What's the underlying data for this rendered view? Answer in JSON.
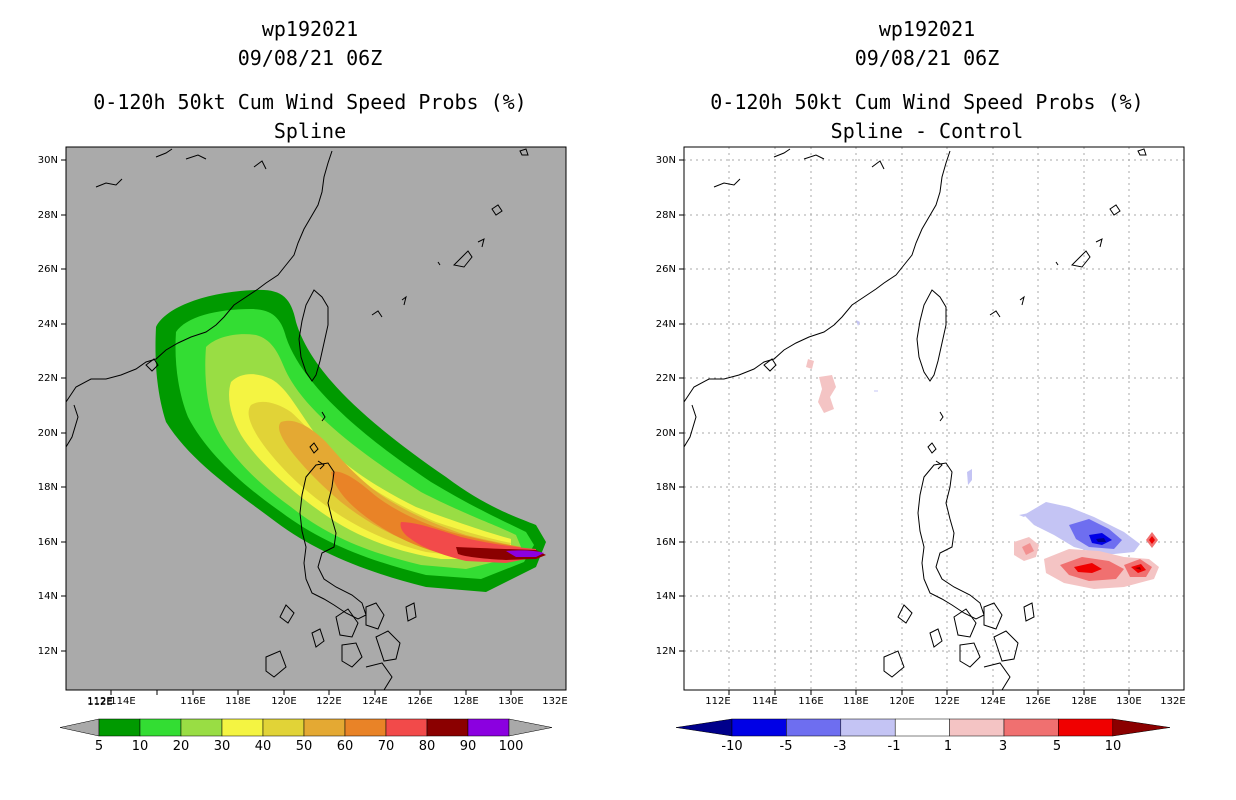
{
  "left_panel": {
    "title_lines": [
      "wp192021",
      "09/08/21 06Z",
      "0-120h 50kt Cum Wind Speed Probs (%)",
      "Spline"
    ],
    "colorbar": {
      "labels": [
        "5",
        "10",
        "20",
        "30",
        "40",
        "50",
        "60",
        "70",
        "80",
        "90",
        "100"
      ],
      "colors": [
        "#009a00",
        "#33dd33",
        "#99dd44",
        "#f4f442",
        "#e1d337",
        "#e4a933",
        "#e98327",
        "#f24a4a",
        "#8b0000",
        "#8b00e0"
      ],
      "end_color": "#a9a9a9"
    }
  },
  "right_panel": {
    "title_lines": [
      "wp192021",
      "09/08/21 06Z",
      "0-120h 50kt Cum Wind Speed Probs (%)",
      "Spline - Control"
    ],
    "colorbar": {
      "labels": [
        "-10",
        "-5",
        "-3",
        "-1",
        "1",
        "3",
        "5",
        "10"
      ],
      "colors": [
        "#0000e6",
        "#6e6ef0",
        "#c4c4f4",
        "#ffffff",
        "#f4c4c4",
        "#f07070",
        "#f00000"
      ],
      "end_left_color": "#00008b",
      "end_right_color": "#8b0000"
    }
  },
  "axes": {
    "lon_labels": [
      "112E",
      "114E",
      "116E",
      "118E",
      "120E",
      "122E",
      "124E",
      "126E",
      "128E",
      "130E",
      "132E"
    ],
    "lat_labels": [
      "12N",
      "14N",
      "16N",
      "18N",
      "20N",
      "22N",
      "24N",
      "26N",
      "28N",
      "30N"
    ]
  },
  "colors": {
    "ocean_left": "#aaaaaa",
    "coast": "#000000",
    "grid": "#aaaaaa"
  }
}
